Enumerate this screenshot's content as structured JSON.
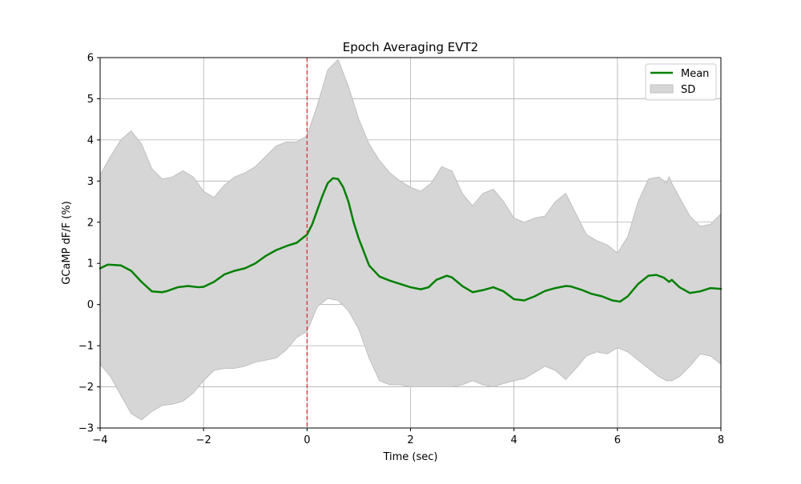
{
  "chart_data": {
    "type": "line",
    "title": "Epoch Averaging EVT2",
    "xlabel": "Time (sec)",
    "ylabel": "GCaMP dF/F (%)",
    "xlim": [
      -4,
      8
    ],
    "ylim": [
      -3,
      6
    ],
    "xticks": [
      -4,
      -2,
      0,
      2,
      4,
      6,
      8
    ],
    "xtick_labels": [
      "−4",
      "−2",
      "0",
      "2",
      "4",
      "6",
      "8"
    ],
    "yticks": [
      -3,
      -2,
      -1,
      0,
      1,
      2,
      3,
      4,
      5,
      6
    ],
    "ytick_labels": [
      "−3",
      "−2",
      "−1",
      "0",
      "1",
      "2",
      "3",
      "4",
      "5",
      "6"
    ],
    "grid": true,
    "legend_position": "top-right",
    "event_line": {
      "x": 0,
      "color": "#d62728",
      "style": "dashed"
    },
    "series": [
      {
        "name": "Mean",
        "type": "line",
        "color": "#008000",
        "x": [
          -4.0,
          -3.85,
          -3.6,
          -3.4,
          -3.2,
          -3.0,
          -2.8,
          -2.7,
          -2.5,
          -2.3,
          -2.1,
          -2.0,
          -1.8,
          -1.6,
          -1.4,
          -1.2,
          -1.0,
          -0.8,
          -0.6,
          -0.4,
          -0.2,
          0.0,
          0.1,
          0.2,
          0.3,
          0.4,
          0.5,
          0.6,
          0.7,
          0.8,
          0.9,
          1.0,
          1.2,
          1.4,
          1.6,
          1.8,
          2.0,
          2.2,
          2.35,
          2.5,
          2.7,
          2.8,
          3.0,
          3.2,
          3.4,
          3.6,
          3.8,
          4.0,
          4.2,
          4.4,
          4.6,
          4.8,
          5.0,
          5.1,
          5.3,
          5.5,
          5.7,
          5.9,
          6.05,
          6.2,
          6.4,
          6.6,
          6.75,
          6.9,
          7.0,
          7.05,
          7.2,
          7.4,
          7.6,
          7.8,
          8.0
        ],
        "y": [
          0.88,
          0.97,
          0.95,
          0.82,
          0.55,
          0.32,
          0.3,
          0.33,
          0.42,
          0.45,
          0.42,
          0.43,
          0.55,
          0.73,
          0.82,
          0.88,
          1.0,
          1.18,
          1.32,
          1.42,
          1.5,
          1.7,
          1.95,
          2.3,
          2.65,
          2.95,
          3.07,
          3.05,
          2.85,
          2.5,
          2.0,
          1.6,
          0.95,
          0.68,
          0.58,
          0.5,
          0.42,
          0.37,
          0.42,
          0.6,
          0.7,
          0.66,
          0.45,
          0.3,
          0.35,
          0.42,
          0.32,
          0.13,
          0.1,
          0.2,
          0.33,
          0.4,
          0.45,
          0.44,
          0.36,
          0.26,
          0.2,
          0.1,
          0.07,
          0.2,
          0.5,
          0.7,
          0.72,
          0.65,
          0.55,
          0.6,
          0.42,
          0.28,
          0.32,
          0.4,
          0.38
        ]
      },
      {
        "name": "SD",
        "type": "band",
        "color": "#bfbfbf",
        "x": [
          -4.0,
          -3.8,
          -3.6,
          -3.4,
          -3.2,
          -3.0,
          -2.8,
          -2.6,
          -2.4,
          -2.2,
          -2.0,
          -1.8,
          -1.6,
          -1.4,
          -1.2,
          -1.0,
          -0.8,
          -0.6,
          -0.4,
          -0.2,
          0.0,
          0.2,
          0.4,
          0.6,
          0.8,
          1.0,
          1.2,
          1.4,
          1.6,
          1.8,
          2.0,
          2.2,
          2.4,
          2.6,
          2.8,
          3.0,
          3.2,
          3.4,
          3.6,
          3.8,
          4.0,
          4.2,
          4.4,
          4.6,
          4.8,
          5.0,
          5.2,
          5.4,
          5.6,
          5.8,
          6.0,
          6.2,
          6.4,
          6.6,
          6.8,
          6.95,
          7.0,
          7.05,
          7.2,
          7.4,
          7.6,
          7.8,
          8.0
        ],
        "upper": [
          3.15,
          3.6,
          4.0,
          4.22,
          3.9,
          3.3,
          3.05,
          3.1,
          3.25,
          3.1,
          2.75,
          2.6,
          2.9,
          3.1,
          3.2,
          3.35,
          3.6,
          3.85,
          3.95,
          3.95,
          4.1,
          4.85,
          5.7,
          5.95,
          5.3,
          4.5,
          3.9,
          3.5,
          3.2,
          3.0,
          2.85,
          2.75,
          2.95,
          3.35,
          3.25,
          2.7,
          2.4,
          2.7,
          2.8,
          2.5,
          2.1,
          2.0,
          2.1,
          2.15,
          2.5,
          2.7,
          2.2,
          1.7,
          1.55,
          1.45,
          1.25,
          1.65,
          2.5,
          3.05,
          3.1,
          2.95,
          3.1,
          2.95,
          2.6,
          2.15,
          1.9,
          1.95,
          2.2
        ],
        "lower": [
          -1.45,
          -1.75,
          -2.2,
          -2.65,
          -2.8,
          -2.6,
          -2.45,
          -2.42,
          -2.35,
          -2.15,
          -1.85,
          -1.6,
          -1.55,
          -1.55,
          -1.5,
          -1.4,
          -1.35,
          -1.3,
          -1.1,
          -0.8,
          -0.65,
          -0.05,
          0.15,
          0.1,
          -0.15,
          -0.6,
          -1.3,
          -1.85,
          -1.95,
          -1.95,
          -2.0,
          -2.0,
          -2.0,
          -2.0,
          -2.0,
          -1.95,
          -1.85,
          -1.95,
          -2.0,
          -1.92,
          -1.85,
          -1.8,
          -1.65,
          -1.5,
          -1.6,
          -1.82,
          -1.55,
          -1.25,
          -1.15,
          -1.2,
          -1.05,
          -1.15,
          -1.35,
          -1.55,
          -1.75,
          -1.85,
          -1.85,
          -1.85,
          -1.75,
          -1.5,
          -1.2,
          -1.25,
          -1.45
        ]
      }
    ],
    "legend": [
      {
        "label": "Mean",
        "kind": "line",
        "color": "#008000"
      },
      {
        "label": "SD",
        "kind": "patch",
        "color": "#d6d6d6"
      }
    ]
  }
}
